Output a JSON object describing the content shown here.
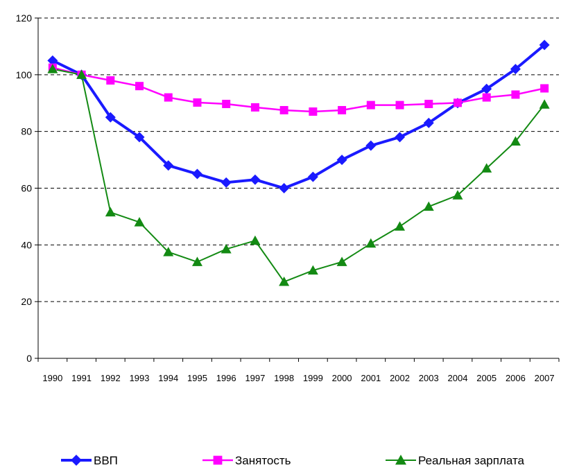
{
  "chart_data": {
    "type": "line",
    "title": "",
    "xlabel": "",
    "ylabel": "",
    "ylim": [
      0,
      120
    ],
    "y_ticks": [
      0,
      20,
      40,
      60,
      80,
      100,
      120
    ],
    "grid": "horizontal dashed",
    "legend_position": "bottom",
    "categories": [
      "1990",
      "1991",
      "1992",
      "1993",
      "1994",
      "1995",
      "1996",
      "1997",
      "1998",
      "1999",
      "2000",
      "2001",
      "2002",
      "2003",
      "2004",
      "2005",
      "2006",
      "2007"
    ],
    "series": [
      {
        "name": "ВВП",
        "color": "#1a1aff",
        "marker": "diamond",
        "values": [
          105,
          100,
          85,
          78,
          68,
          65,
          62,
          63,
          60,
          64,
          70,
          75,
          78,
          83,
          90,
          95,
          102,
          110.5
        ]
      },
      {
        "name": "Занятость",
        "color": "#ff00ff",
        "marker": "square",
        "values": [
          102.5,
          100,
          98,
          96,
          92,
          90.2,
          89.7,
          88.5,
          87.5,
          87,
          87.5,
          89.3,
          89.3,
          89.7,
          90.1,
          92,
          93,
          95.2
        ]
      },
      {
        "name": "Реальная зарплата",
        "color": "#138a13",
        "marker": "triangle",
        "values": [
          102,
          100,
          51.5,
          48,
          37.5,
          34,
          38.5,
          41.5,
          27,
          31,
          34,
          40.5,
          46.5,
          53.5,
          57.5,
          67,
          76.5,
          89.5
        ]
      }
    ]
  }
}
